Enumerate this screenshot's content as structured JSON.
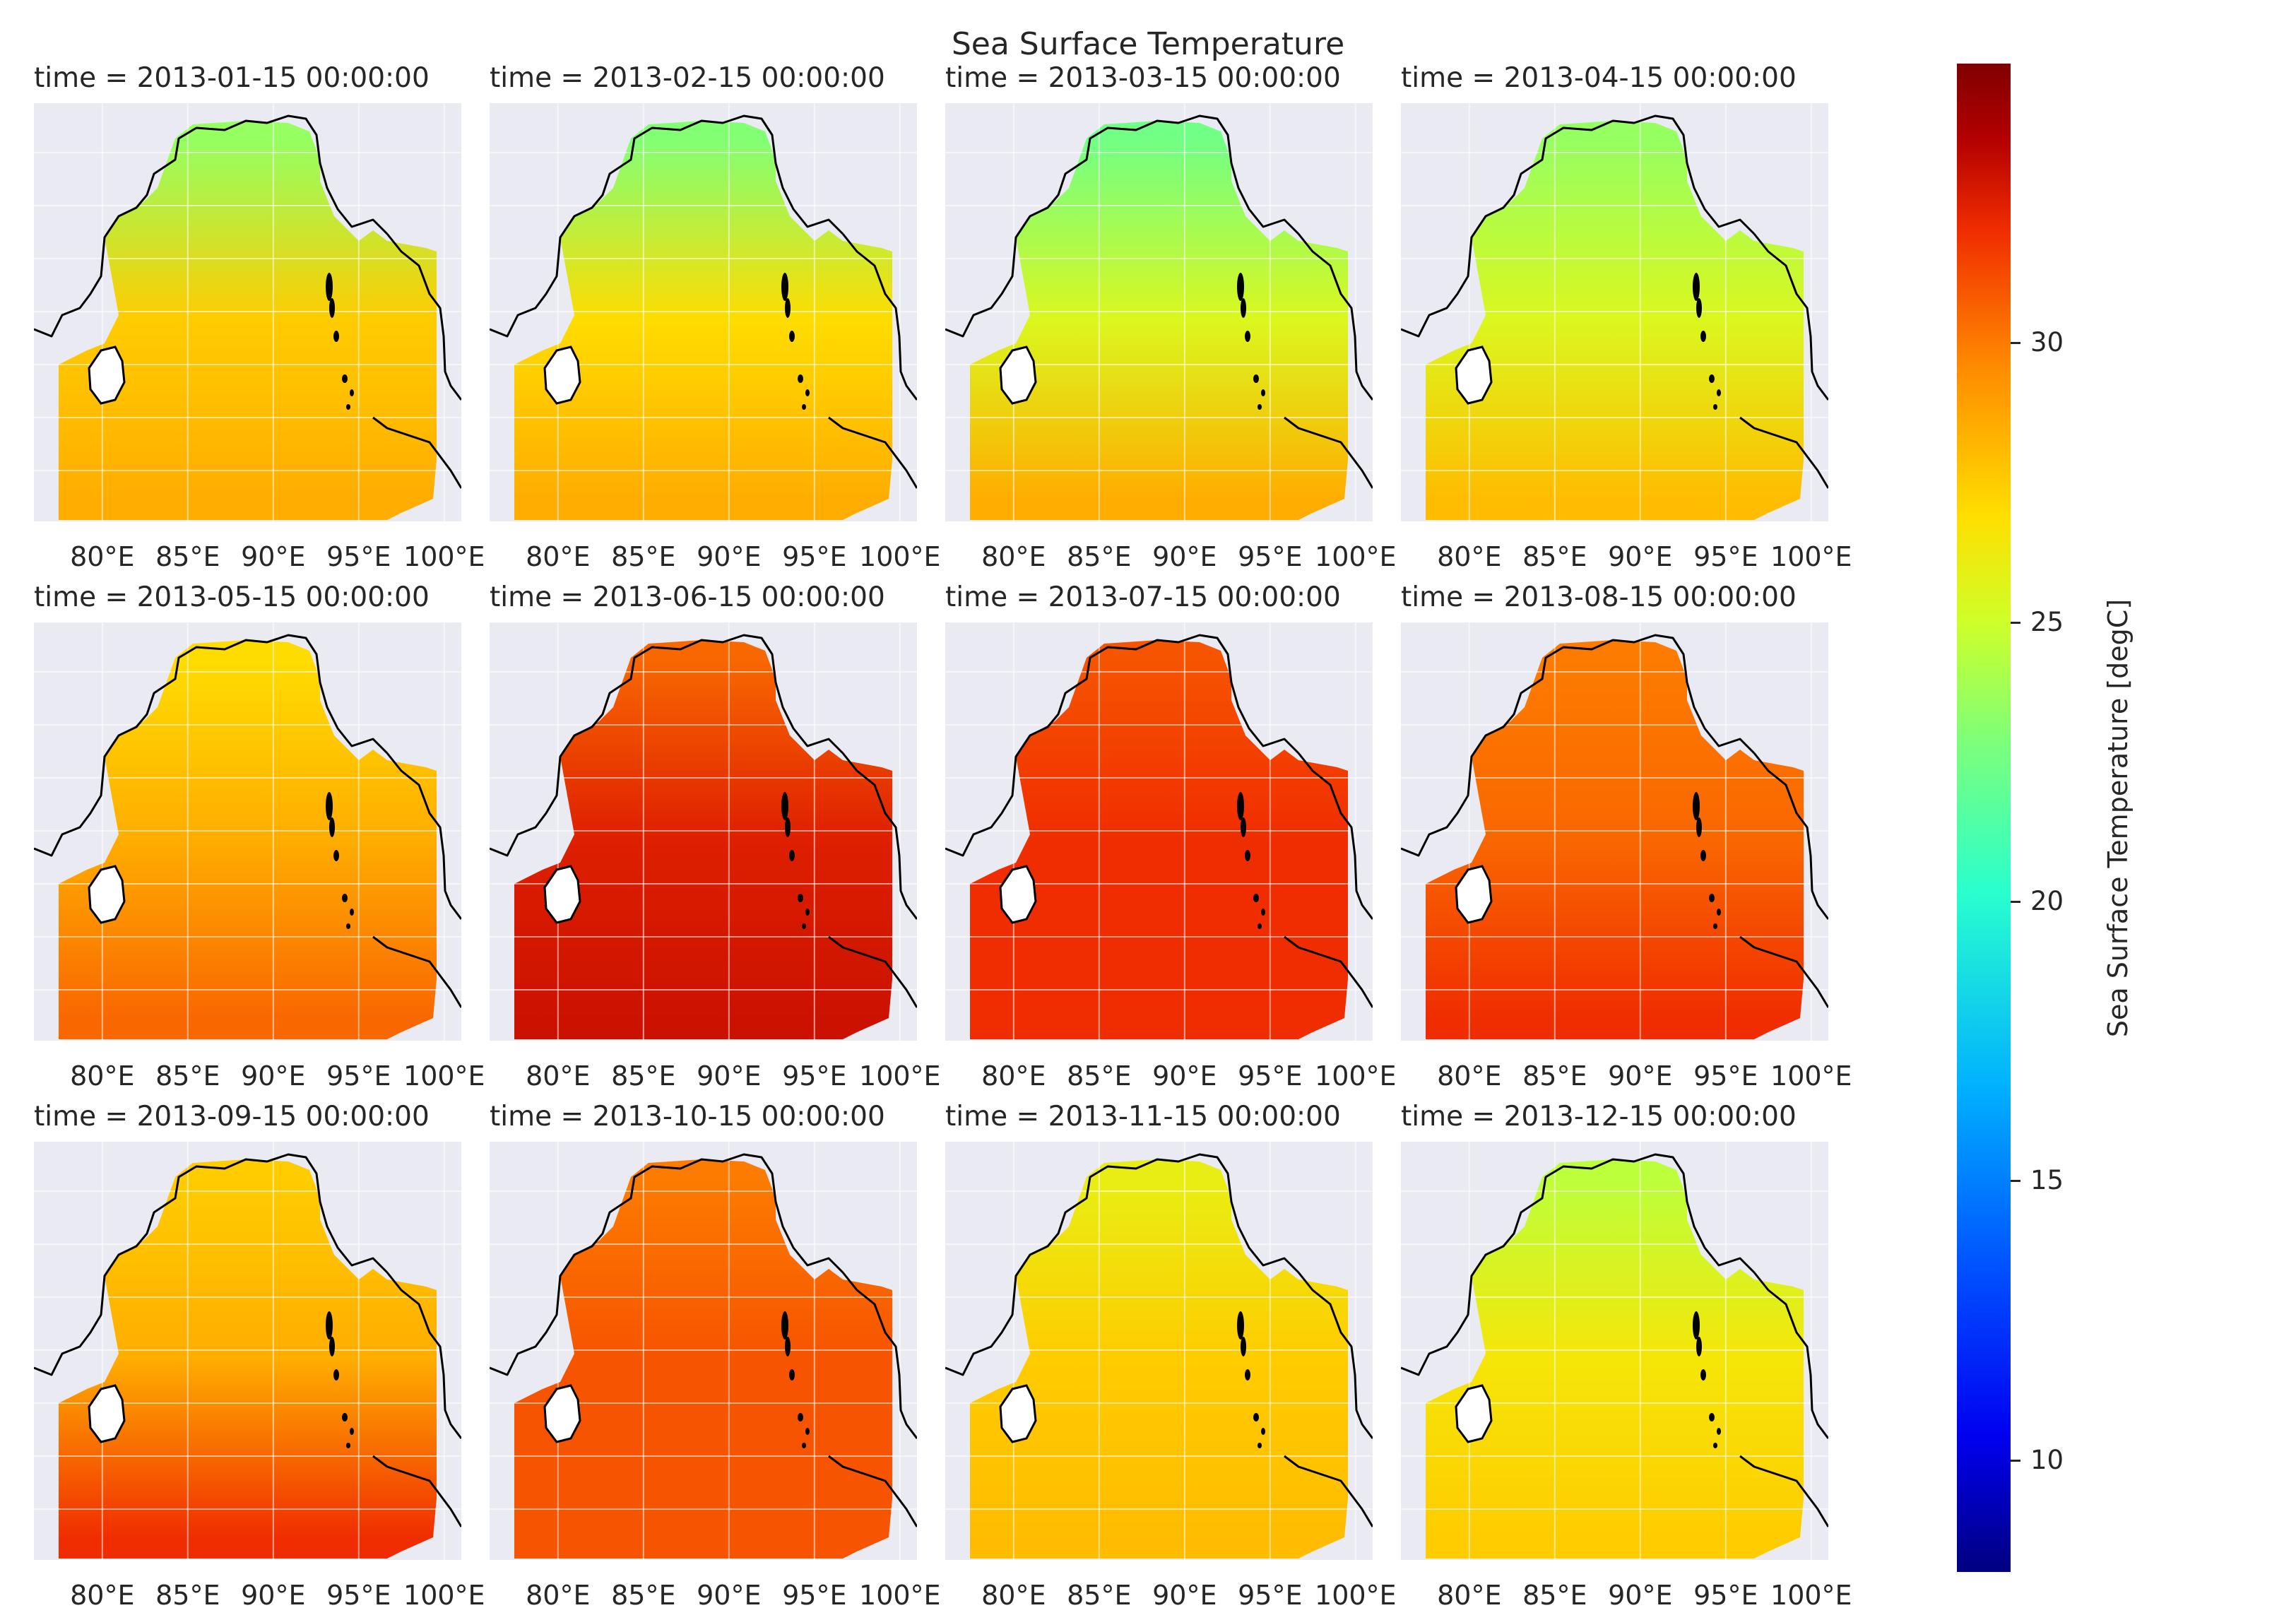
{
  "figure": {
    "title": "Sea Surface Temperature",
    "colorbar_label": "Sea Surface Temperature [degC]",
    "colorbar_ticks": [
      "10",
      "15",
      "20",
      "25",
      "30"
    ],
    "x_ticks": [
      "80°E",
      "85°E",
      "90°E",
      "95°E",
      "100°E"
    ],
    "colormap": "jet",
    "land_color": "#ffffff",
    "background_color": "#eaeaf2",
    "coastline_color": "#000000"
  },
  "chart_data": {
    "type": "heatmap",
    "title": "Sea Surface Temperature",
    "colorbar": {
      "label": "Sea Surface Temperature [degC]",
      "range": [
        8,
        35
      ],
      "ticks": [
        10,
        15,
        20,
        25,
        30
      ],
      "colormap": "jet"
    },
    "x_axis": {
      "ticks": [
        80,
        85,
        90,
        95,
        100
      ],
      "tick_labels": [
        "80°E",
        "85°E",
        "90°E",
        "95°E",
        "100°E"
      ],
      "range": [
        76,
        101
      ]
    },
    "grid": true,
    "panels": [
      {
        "title": "time = 2013-01-15 00:00:00",
        "north_sst": 23.5,
        "mid_sst": 27.5,
        "south_sst": 28.5
      },
      {
        "title": "time = 2013-02-15 00:00:00",
        "north_sst": 23.0,
        "mid_sst": 27.0,
        "south_sst": 28.5
      },
      {
        "title": "time = 2013-03-15 00:00:00",
        "north_sst": 22.5,
        "mid_sst": 25.5,
        "south_sst": 28.5
      },
      {
        "title": "time = 2013-04-15 00:00:00",
        "north_sst": 23.5,
        "mid_sst": 25.5,
        "south_sst": 28.0
      },
      {
        "title": "time = 2013-05-15 00:00:00",
        "north_sst": 27.0,
        "mid_sst": 28.5,
        "south_sst": 30.5
      },
      {
        "title": "time = 2013-06-15 00:00:00",
        "north_sst": 30.5,
        "mid_sst": 32.5,
        "south_sst": 33.0
      },
      {
        "title": "time = 2013-07-15 00:00:00",
        "north_sst": 31.0,
        "mid_sst": 32.0,
        "south_sst": 32.0
      },
      {
        "title": "time = 2013-08-15 00:00:00",
        "north_sst": 30.0,
        "mid_sst": 30.5,
        "south_sst": 32.0
      },
      {
        "title": "time = 2013-09-15 00:00:00",
        "north_sst": 27.5,
        "mid_sst": 28.5,
        "south_sst": 32.0
      },
      {
        "title": "time = 2013-10-15 00:00:00",
        "north_sst": 30.0,
        "mid_sst": 31.0,
        "south_sst": 31.0
      },
      {
        "title": "time = 2013-11-15 00:00:00",
        "north_sst": 26.0,
        "mid_sst": 27.5,
        "south_sst": 28.0
      },
      {
        "title": "time = 2013-12-15 00:00:00",
        "north_sst": 24.5,
        "mid_sst": 26.5,
        "south_sst": 27.5
      }
    ]
  }
}
